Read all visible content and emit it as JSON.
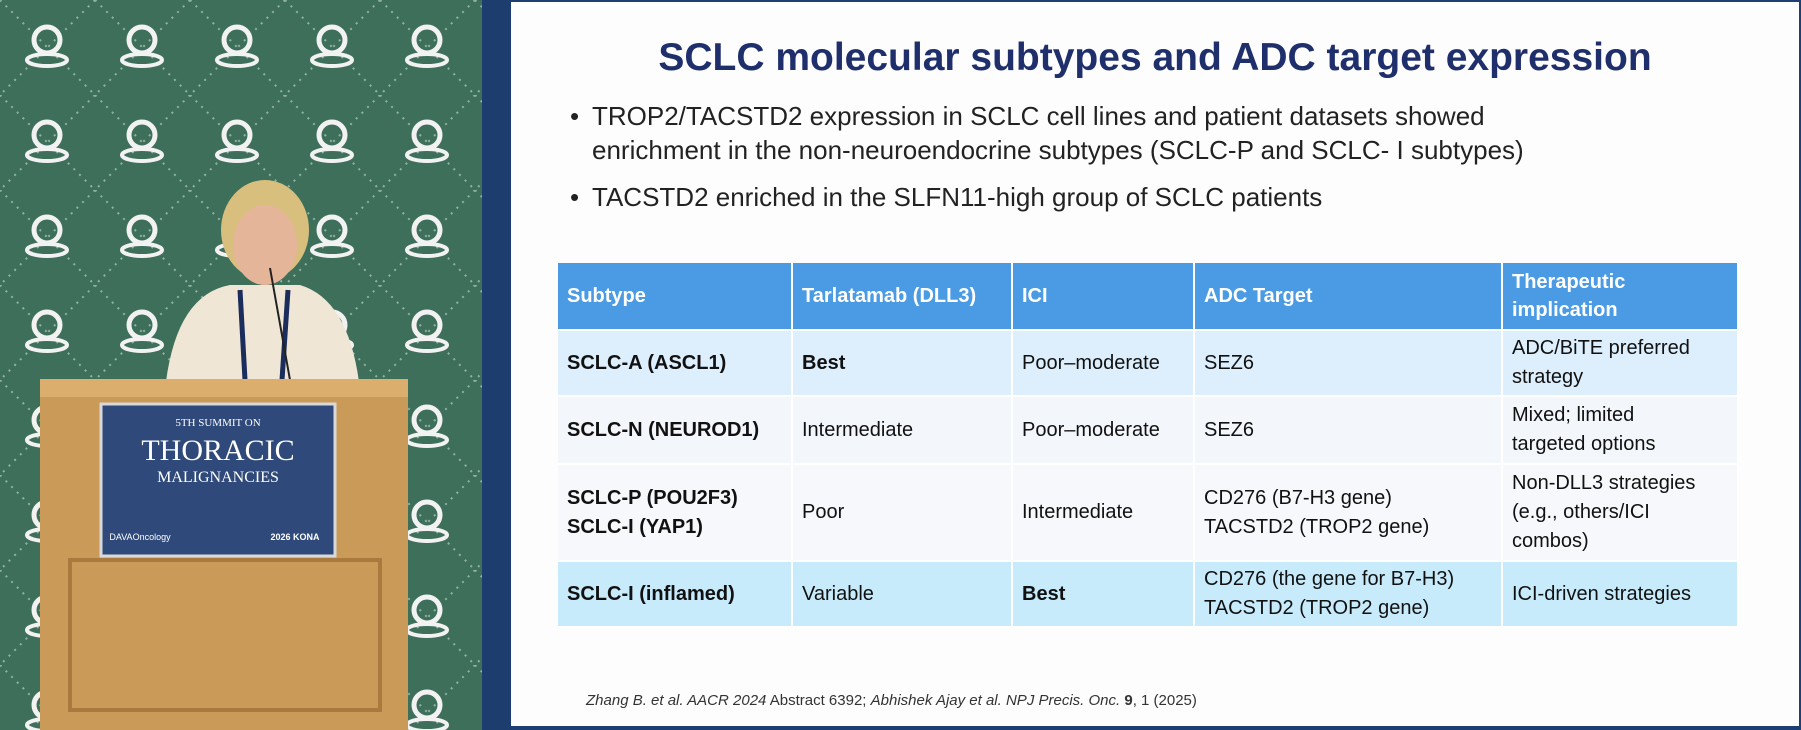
{
  "header": {
    "title": "SCLC molecular subtypes and ADC target expression"
  },
  "bullets": [
    [
      "TROP2/TACSTD2 expression in SCLC cell lines and patient datasets showed",
      "enrichment in the non-neuroendocrine subtypes (SCLC-P and SCLC- I subtypes)"
    ],
    [
      "TACSTD2 enriched in the SLFN11-high group of SCLC patients"
    ]
  ],
  "table": {
    "columns": [
      [
        "Subtype"
      ],
      [
        "Tarlatamab (DLL3)"
      ],
      [
        "ICI"
      ],
      [
        "ADC Target"
      ],
      [
        "Therapeutic",
        "implication"
      ]
    ],
    "rows": [
      [
        [
          "SCLC-A (ASCL1)"
        ],
        [
          "Best"
        ],
        [
          "Poor–moderate"
        ],
        [
          "SEZ6"
        ],
        [
          "ADC/BiTE preferred",
          "strategy"
        ]
      ],
      [
        [
          "SCLC-N (NEUROD1)"
        ],
        [
          "Intermediate"
        ],
        [
          "Poor–moderate"
        ],
        [
          "SEZ6"
        ],
        [
          "Mixed; limited",
          "targeted options"
        ]
      ],
      [
        [
          "SCLC-P (POU2F3)",
          "SCLC-I (YAP1)"
        ],
        [
          "Poor"
        ],
        [
          "Intermediate"
        ],
        [
          "CD276 (B7-H3 gene)",
          "TACSTD2 (TROP2 gene)"
        ],
        [
          "Non-DLL3 strategies",
          "(e.g., others/ICI",
          "combos)"
        ]
      ],
      [
        [
          "SCLC-I (inflamed)"
        ],
        [
          "Variable"
        ],
        [
          "Best"
        ],
        [
          "CD276 (the gene for B7-H3)",
          "TACSTD2 (TROP2 gene)"
        ],
        [
          "ICI-driven strategies"
        ]
      ]
    ]
  },
  "citation": [
    "Zhang B. et al. AACR 2024",
    " Abstract 6392; ",
    "Abhishek Ajay et al. NPJ Precis. Onc.",
    " 9",
    ", 1 (2025)"
  ],
  "scene": {
    "sign": [
      "5TH SUMMIT ON",
      "THORACIC",
      "MALIGNANCIES",
      "DAVAOncology",
      "2026 KONA"
    ]
  }
}
